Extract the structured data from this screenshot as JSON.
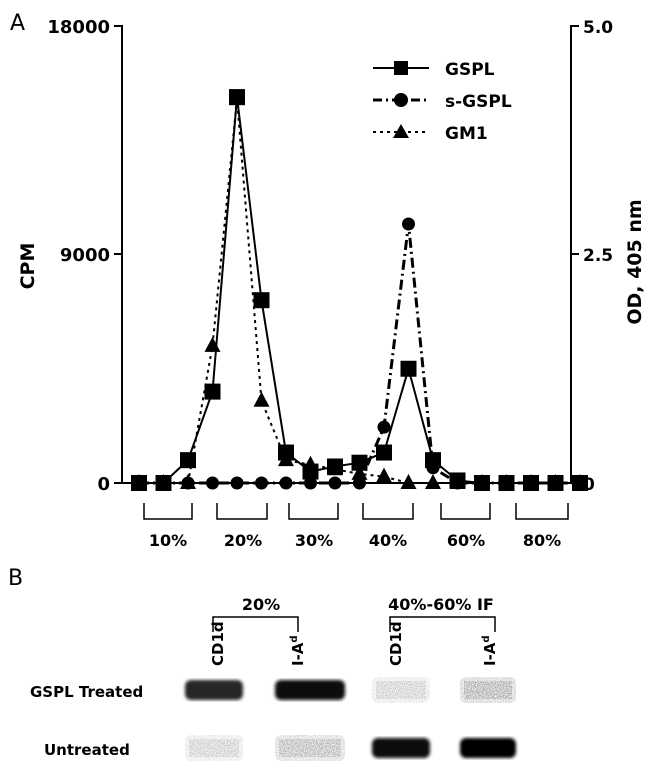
{
  "panel_a": {
    "letter": "A",
    "chart_data": {
      "type": "line",
      "title": "",
      "x": [
        1,
        2,
        3,
        4,
        5,
        6,
        7,
        8,
        9,
        10,
        11,
        12,
        13,
        14,
        15,
        16,
        17,
        18,
        19
      ],
      "y_left": {
        "label": "CPM",
        "ylim": [
          0,
          18000
        ],
        "ticks": [
          "0",
          "9000",
          "18000"
        ],
        "tick_values": [
          0,
          9000,
          18000
        ]
      },
      "y_right": {
        "label": "OD, 405 nm",
        "ylim": [
          0,
          5.0
        ],
        "ticks": [
          "0",
          "2.5",
          "5.0"
        ],
        "tick_values": [
          0,
          2.5,
          5.0
        ]
      },
      "series": [
        {
          "name": "GSPL",
          "axis": "left",
          "marker": "square",
          "dash": "solid",
          "values": [
            0,
            0,
            900,
            3600,
            15200,
            7200,
            1200,
            450,
            650,
            800,
            1200,
            4500,
            900,
            100,
            0,
            0,
            0,
            0,
            0
          ]
        },
        {
          "name": "s-GSPL",
          "axis": "left",
          "marker": "circle",
          "dash": "dashdot",
          "values": [
            0,
            0,
            0,
            0,
            0,
            0,
            0,
            0,
            0,
            0,
            2200,
            10200,
            600,
            0,
            0,
            0,
            0,
            0,
            0
          ]
        },
        {
          "name": "GM1",
          "axis": "right",
          "marker": "triangle",
          "dash": "dotted",
          "values": [
            0,
            0,
            0,
            1.5,
            4.2,
            0.9,
            0.25,
            0.2,
            0.15,
            0.1,
            0.07,
            0.0,
            0,
            0,
            0,
            0,
            0,
            0,
            0
          ]
        }
      ],
      "legend_position": "top-right",
      "gradient_labels": [
        "10%",
        "20%",
        "30%",
        "40%",
        "60%",
        "80%"
      ]
    }
  },
  "panel_b": {
    "letter": "B",
    "groups": [
      {
        "label": "20%",
        "lanes": [
          "CD1d",
          "I-A"
        ]
      },
      {
        "label": "40%-60% IF",
        "lanes": [
          "CD1d",
          "I-A"
        ]
      }
    ],
    "lane_superscript": "d",
    "rows": [
      "GSPL Treated",
      "Untreated"
    ],
    "band_intensity": [
      [
        0.85,
        0.95,
        0.15,
        0.3
      ],
      [
        0.15,
        0.25,
        0.95,
        0.98
      ]
    ]
  }
}
